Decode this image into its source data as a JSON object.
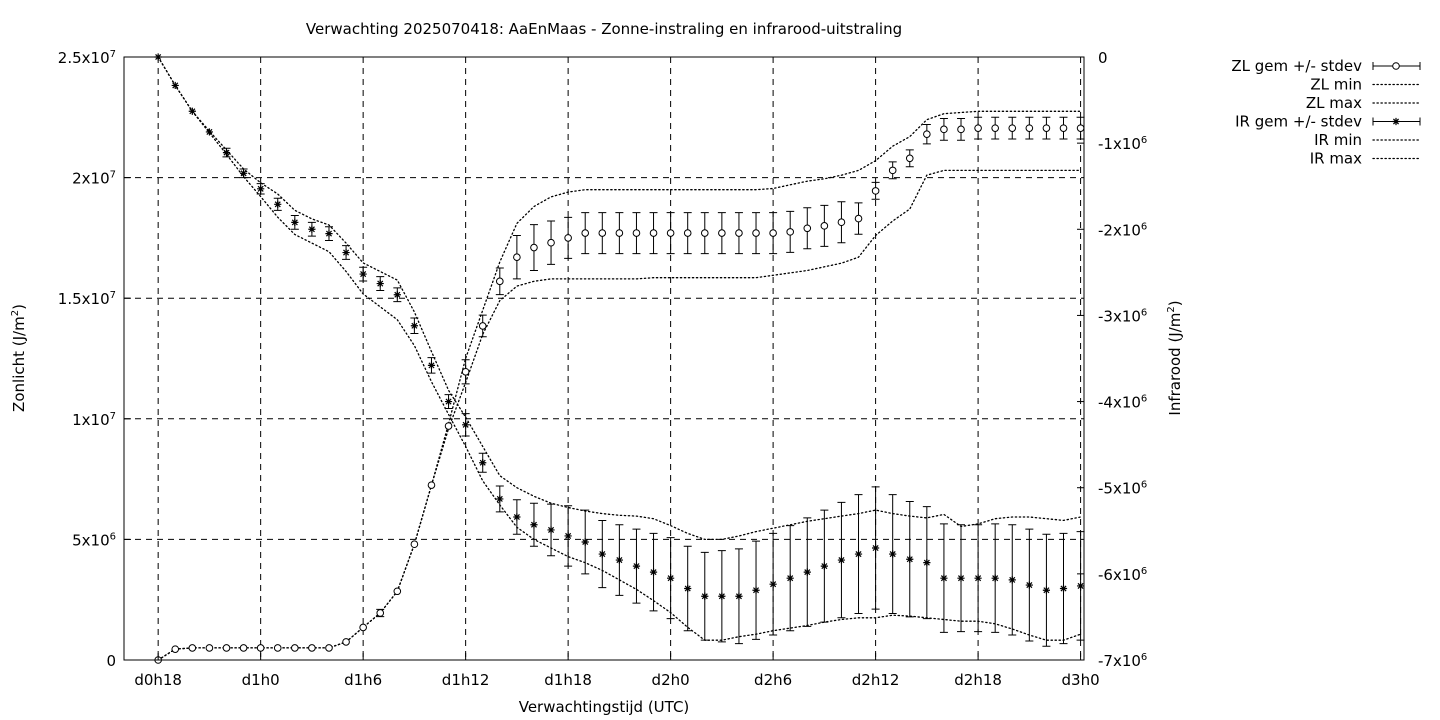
{
  "chart_data": {
    "type": "line",
    "title": "Verwachting 2025070418: AaEnMaas - Zonne-instraling en infrarood-uitstraling",
    "xlabel": "Verwachtingstijd (UTC)",
    "ylabel_left_base": "Zonlicht (J/m",
    "ylabel_left_sup": "2",
    "ylabel_left_end": ")",
    "ylabel_right_base": "Infrarood (J/m",
    "ylabel_right_sup": "2",
    "ylabel_right_end": ")",
    "x_hours": [
      18,
      19,
      20,
      21,
      22,
      23,
      24,
      25,
      26,
      27,
      28,
      29,
      30,
      31,
      32,
      33,
      34,
      35,
      36,
      37,
      38,
      39,
      40,
      41,
      42,
      43,
      44,
      45,
      46,
      47,
      48,
      49,
      50,
      51,
      52,
      53,
      54,
      55,
      56,
      57,
      58,
      59,
      60,
      61,
      62,
      63,
      64,
      65,
      66,
      67,
      68,
      69,
      70,
      71,
      72
    ],
    "xlim": [
      16,
      72.2
    ],
    "x_ticks": [
      {
        "h": 18,
        "label": "d0h18"
      },
      {
        "h": 24,
        "label": "d1h0"
      },
      {
        "h": 30,
        "label": "d1h6"
      },
      {
        "h": 36,
        "label": "d1h12"
      },
      {
        "h": 42,
        "label": "d1h18"
      },
      {
        "h": 48,
        "label": "d2h0"
      },
      {
        "h": 54,
        "label": "d2h6"
      },
      {
        "h": 60,
        "label": "d2h12"
      },
      {
        "h": 66,
        "label": "d2h18"
      },
      {
        "h": 72,
        "label": "d3h0"
      }
    ],
    "y_left": {
      "lim": [
        0,
        25000000
      ],
      "ticks": [
        {
          "v": 0,
          "base": "0",
          "exp": ""
        },
        {
          "v": 5000000,
          "base": "5x10",
          "exp": "6"
        },
        {
          "v": 10000000,
          "base": "1x10",
          "exp": "7"
        },
        {
          "v": 15000000,
          "base": "1.5x10",
          "exp": "7"
        },
        {
          "v": 20000000,
          "base": "2x10",
          "exp": "7"
        },
        {
          "v": 25000000,
          "base": "2.5x10",
          "exp": "7"
        }
      ],
      "grid": true
    },
    "y_right": {
      "lim": [
        -7000000,
        0
      ],
      "ticks": [
        {
          "v": 0,
          "base": "0",
          "exp": ""
        },
        {
          "v": -1000000,
          "base": "-1x10",
          "exp": "6"
        },
        {
          "v": -2000000,
          "base": "-2x10",
          "exp": "6"
        },
        {
          "v": -3000000,
          "base": "-3x10",
          "exp": "6"
        },
        {
          "v": -4000000,
          "base": "-4x10",
          "exp": "6"
        },
        {
          "v": -5000000,
          "base": "-5x10",
          "exp": "6"
        },
        {
          "v": -6000000,
          "base": "-6x10",
          "exp": "6"
        },
        {
          "v": -7000000,
          "base": "-7x10",
          "exp": "6"
        }
      ]
    },
    "legend_position": "outside-right",
    "series": [
      {
        "name": "ZL gem +/- stdev",
        "axis": "left",
        "marker": "circle",
        "mean": [
          0,
          450000,
          500000,
          500000,
          500000,
          500000,
          500000,
          500000,
          500000,
          500000,
          500000,
          750000,
          1350000,
          1950000,
          2850000,
          4800000,
          7250000,
          9700000,
          11950000,
          13850000,
          15700000,
          16700000,
          17100000,
          17300000,
          17500000,
          17700000,
          17700000,
          17700000,
          17700000,
          17700000,
          17700000,
          17700000,
          17700000,
          17700000,
          17700000,
          17700000,
          17700000,
          17750000,
          17900000,
          18000000,
          18150000,
          18300000,
          19450000,
          20300000,
          20800000,
          21800000,
          22000000,
          22000000,
          22050000,
          22050000,
          22050000,
          22050000,
          22050000,
          22050000,
          22050000
        ],
        "stdev": [
          0,
          0,
          0,
          0,
          0,
          0,
          0,
          0,
          0,
          0,
          0,
          0,
          0,
          150000,
          0,
          0,
          0,
          0,
          500000,
          450000,
          550000,
          900000,
          950000,
          900000,
          850000,
          850000,
          850000,
          850000,
          850000,
          850000,
          850000,
          850000,
          850000,
          850000,
          850000,
          850000,
          850000,
          850000,
          850000,
          850000,
          850000,
          650000,
          350000,
          350000,
          350000,
          400000,
          450000,
          450000,
          450000,
          450000,
          450000,
          450000,
          450000,
          450000,
          450000
        ]
      },
      {
        "name": "ZL min",
        "axis": "left",
        "style": "dotted",
        "values": [
          0,
          450000,
          500000,
          500000,
          500000,
          500000,
          500000,
          500000,
          500000,
          500000,
          500000,
          750000,
          1350000,
          1950000,
          2850000,
          4800000,
          7250000,
          9600000,
          11500000,
          13500000,
          14900000,
          15500000,
          15700000,
          15800000,
          15800000,
          15800000,
          15800000,
          15800000,
          15800000,
          15850000,
          15850000,
          15850000,
          15850000,
          15850000,
          15850000,
          15850000,
          15950000,
          16050000,
          16150000,
          16300000,
          16450000,
          16700000,
          17600000,
          18200000,
          18700000,
          20100000,
          20300000,
          20300000,
          20300000,
          20300000,
          20300000,
          20300000,
          20300000,
          20300000,
          20300000
        ]
      },
      {
        "name": "ZL max",
        "axis": "left",
        "style": "dotted",
        "values": [
          0,
          450000,
          500000,
          500000,
          500000,
          500000,
          500000,
          500000,
          500000,
          500000,
          500000,
          750000,
          1350000,
          1950000,
          2850000,
          4800000,
          7250000,
          9800000,
          12500000,
          14500000,
          16500000,
          18100000,
          18800000,
          19200000,
          19400000,
          19500000,
          19500000,
          19500000,
          19500000,
          19500000,
          19500000,
          19500000,
          19500000,
          19500000,
          19500000,
          19500000,
          19550000,
          19700000,
          19850000,
          19950000,
          20100000,
          20300000,
          20700000,
          21300000,
          21700000,
          22400000,
          22650000,
          22700000,
          22750000,
          22750000,
          22750000,
          22750000,
          22750000,
          22750000,
          22750000
        ]
      },
      {
        "name": "IR gem +/- stdev",
        "axis": "right",
        "marker": "asterisk",
        "mean": [
          0,
          -330000,
          -630000,
          -870000,
          -1110000,
          -1350000,
          -1530000,
          -1710000,
          -1920000,
          -2000000,
          -2050000,
          -2270000,
          -2520000,
          -2630000,
          -2760000,
          -3120000,
          -3580000,
          -4000000,
          -4270000,
          -4710000,
          -5130000,
          -5340000,
          -5430000,
          -5490000,
          -5560000,
          -5630000,
          -5770000,
          -5840000,
          -5910000,
          -5980000,
          -6050000,
          -6170000,
          -6260000,
          -6260000,
          -6260000,
          -6190000,
          -6120000,
          -6050000,
          -5980000,
          -5910000,
          -5840000,
          -5770000,
          -5700000,
          -5770000,
          -5830000,
          -5870000,
          -6050000,
          -6050000,
          -6050000,
          -6050000,
          -6070000,
          -6130000,
          -6190000,
          -6170000,
          -6140000
        ],
        "stdev": [
          0,
          0,
          0,
          0,
          50000,
          50000,
          60000,
          70000,
          80000,
          80000,
          80000,
          80000,
          80000,
          80000,
          80000,
          90000,
          90000,
          80000,
          130000,
          110000,
          150000,
          200000,
          250000,
          300000,
          350000,
          370000,
          390000,
          410000,
          430000,
          450000,
          470000,
          490000,
          510000,
          530000,
          550000,
          570000,
          590000,
          610000,
          630000,
          650000,
          670000,
          690000,
          710000,
          690000,
          670000,
          650000,
          630000,
          620000,
          620000,
          630000,
          640000,
          650000,
          650000,
          640000,
          630000
        ]
      },
      {
        "name": "IR min",
        "axis": "right",
        "style": "dotted",
        "values": [
          0,
          -330000,
          -630000,
          -880000,
          -1130000,
          -1390000,
          -1620000,
          -1860000,
          -2060000,
          -2160000,
          -2260000,
          -2490000,
          -2750000,
          -2900000,
          -3050000,
          -3350000,
          -3770000,
          -4150000,
          -4520000,
          -4920000,
          -5200000,
          -5460000,
          -5600000,
          -5700000,
          -5800000,
          -5870000,
          -5960000,
          -6070000,
          -6180000,
          -6310000,
          -6450000,
          -6620000,
          -6770000,
          -6770000,
          -6730000,
          -6700000,
          -6660000,
          -6630000,
          -6600000,
          -6560000,
          -6530000,
          -6510000,
          -6510000,
          -6480000,
          -6490000,
          -6510000,
          -6530000,
          -6550000,
          -6550000,
          -6580000,
          -6640000,
          -6710000,
          -6770000,
          -6770000,
          -6700000
        ]
      },
      {
        "name": "IR max",
        "axis": "right",
        "style": "dotted",
        "values": [
          0,
          -330000,
          -630000,
          -860000,
          -1080000,
          -1300000,
          -1460000,
          -1590000,
          -1780000,
          -1880000,
          -1950000,
          -2160000,
          -2390000,
          -2490000,
          -2590000,
          -2960000,
          -3420000,
          -3870000,
          -4180000,
          -4520000,
          -4860000,
          -5000000,
          -5100000,
          -5180000,
          -5230000,
          -5270000,
          -5300000,
          -5320000,
          -5330000,
          -5360000,
          -5440000,
          -5530000,
          -5600000,
          -5600000,
          -5560000,
          -5510000,
          -5470000,
          -5430000,
          -5390000,
          -5360000,
          -5330000,
          -5300000,
          -5260000,
          -5300000,
          -5330000,
          -5350000,
          -5310000,
          -5450000,
          -5420000,
          -5360000,
          -5340000,
          -5340000,
          -5360000,
          -5380000,
          -5340000
        ]
      }
    ]
  }
}
